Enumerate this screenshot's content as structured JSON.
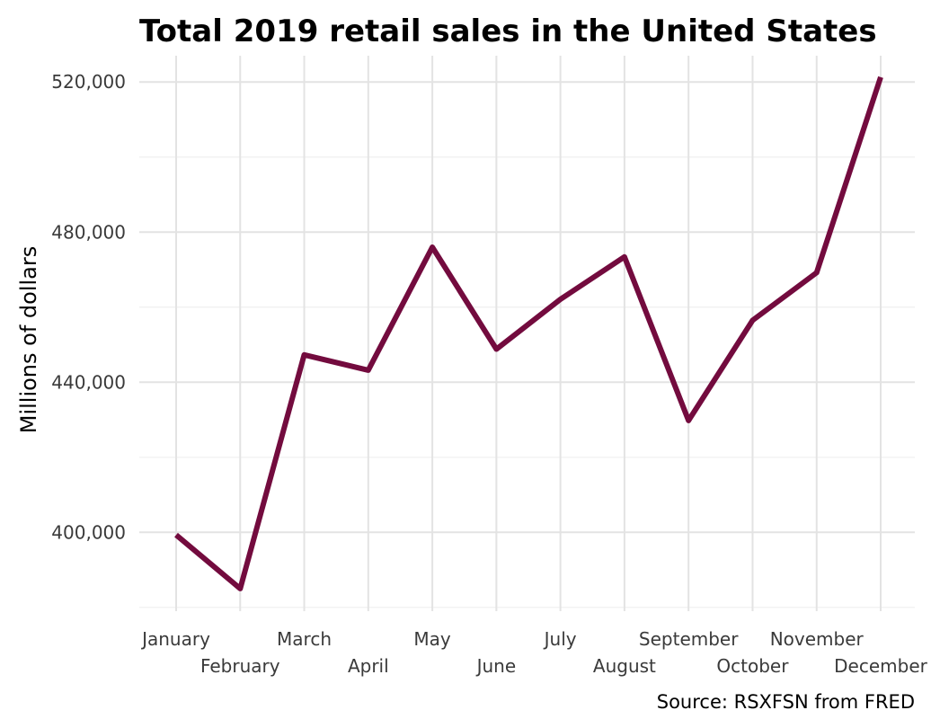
{
  "chart_data": {
    "type": "line",
    "title": "Total 2019 retail sales in the United States",
    "xlabel": "",
    "ylabel": "Millions of dollars",
    "caption": "Source: RSXFSN from FRED",
    "categories": [
      "January",
      "February",
      "March",
      "April",
      "May",
      "June",
      "July",
      "August",
      "September",
      "October",
      "November",
      "December"
    ],
    "series": [
      {
        "values": [
          399300,
          385000,
          447300,
          443200,
          476000,
          448800,
          462100,
          473400,
          429800,
          456500,
          469200,
          521300
        ]
      }
    ],
    "ylim": [
      379000,
      527000
    ],
    "y_ticks": [
      400000,
      440000,
      480000,
      520000
    ],
    "y_tick_labels": [
      "400,000",
      "440,000",
      "480,000",
      "520,000"
    ],
    "grid": true,
    "legend": "none",
    "colors": {
      "line": "#730b3e",
      "grid": "#e3e3e3"
    }
  }
}
